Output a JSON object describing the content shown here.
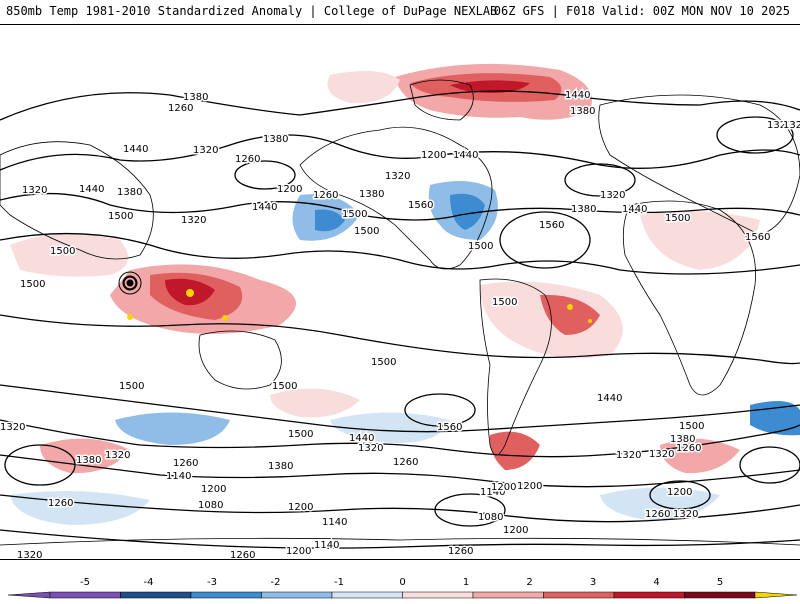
{
  "header": {
    "title": "850mb Temp 1981-2010 Standardized Anomaly | College of DuPage NEXLAB",
    "run_info": "06Z GFS | F018 Valid: 00Z MON NOV 10 2025"
  },
  "colors": {
    "neg5": "#7b4fb5",
    "neg4": "#1f4e8c",
    "neg3": "#3d8bd1",
    "neg2": "#8fbde8",
    "neg1": "#d3e5f5",
    "pos1": "#f9dcdc",
    "pos2": "#f2a8a8",
    "pos3": "#e06060",
    "pos4": "#c0182a",
    "pos5": "#7a0a1a",
    "extreme": "#f5d400"
  },
  "contour_labels": [
    "1380",
    "1260",
    "1440",
    "1320",
    "1380",
    "1320",
    "1260",
    "1200",
    "1380",
    "1500",
    "1320",
    "1440",
    "1260",
    "1380",
    "1440",
    "1320",
    "1560",
    "1380",
    "1440",
    "1320",
    "1200",
    "1320",
    "1440",
    "1500",
    "1380",
    "1500",
    "1320",
    "1560",
    "1500",
    "1560",
    "1500",
    "1500",
    "1500",
    "1500",
    "1500",
    "1500",
    "1500",
    "1560",
    "1500",
    "1440",
    "1320",
    "1380",
    "1440",
    "1320",
    "1260",
    "1380",
    "1320",
    "1260",
    "1140",
    "1200",
    "1080",
    "1140",
    "1200",
    "1080",
    "1140",
    "1200",
    "1260",
    "1320",
    "1260",
    "1200",
    "1260",
    "1320",
    "1140",
    "1200",
    "1320",
    "1260",
    "1200",
    "1260",
    "1320",
    "1500",
    "1440",
    "1380",
    "1200"
  ],
  "colorbar": {
    "labels": [
      "-5",
      "-4",
      "-3",
      "-2",
      "-1",
      "0",
      "1",
      "2",
      "3",
      "4",
      "5"
    ]
  }
}
